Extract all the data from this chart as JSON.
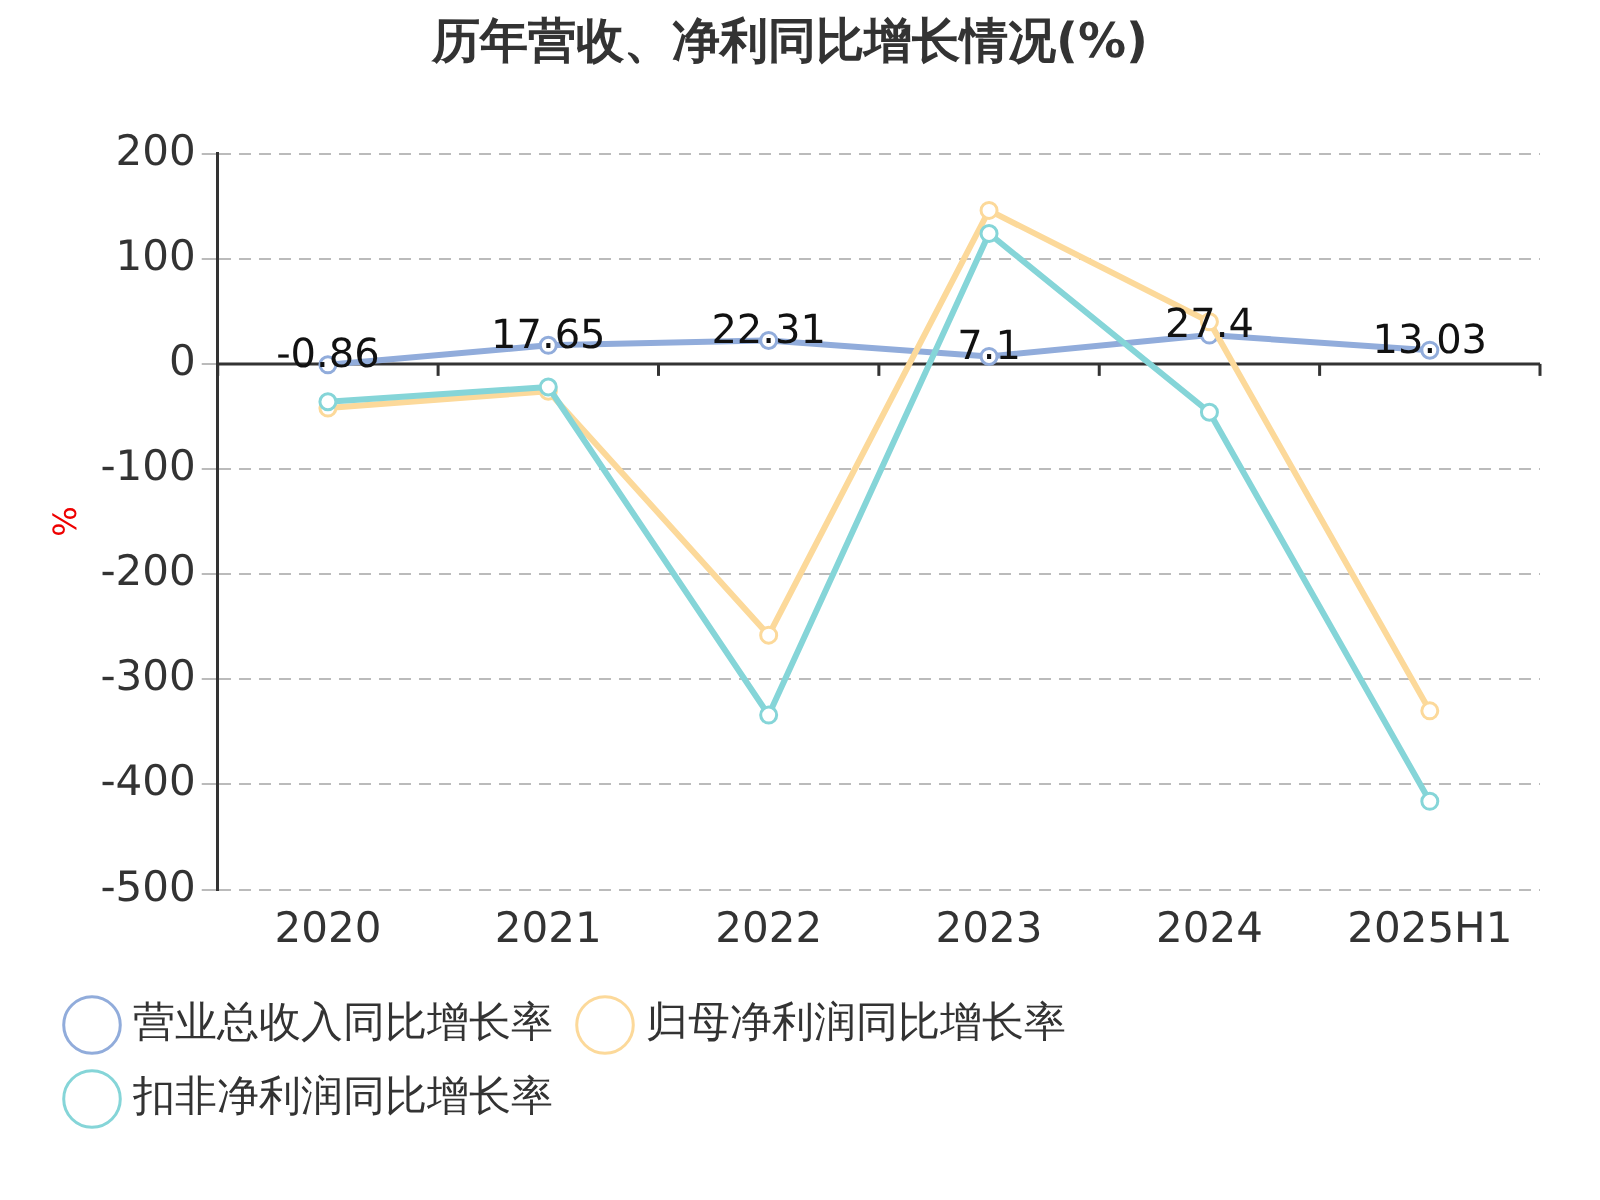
{
  "chart_data": {
    "type": "line",
    "title": "历年营收、净利同比增长情况(%)",
    "ylabel": "%",
    "categories": [
      "2020",
      "2021",
      "2022",
      "2023",
      "2024",
      "2025H1"
    ],
    "series": [
      {
        "name": "营业总收入同比增长率",
        "color": "#91acdb",
        "values": [
          -0.86,
          17.65,
          22.31,
          7.1,
          27.4,
          13.03
        ],
        "value_labels": [
          "-0.86",
          "17.65",
          "22.31",
          "7.1",
          "27.4",
          "13.03"
        ]
      },
      {
        "name": "归母净利润同比增长率",
        "color": "#fcd99a",
        "values": [
          -42,
          -26,
          -258,
          146,
          40,
          -330
        ]
      },
      {
        "name": "扣非净利润同比增长率",
        "color": "#85d5d8",
        "values": [
          -36,
          -22,
          -334,
          124,
          -46,
          -416
        ]
      }
    ],
    "ylim": [
      -500,
      200
    ],
    "yticks": [
      -500,
      -400,
      -300,
      -200,
      -100,
      0,
      100,
      200
    ],
    "grid": "y",
    "legend": "bottom",
    "marker": "circle",
    "line_style": "solid"
  }
}
